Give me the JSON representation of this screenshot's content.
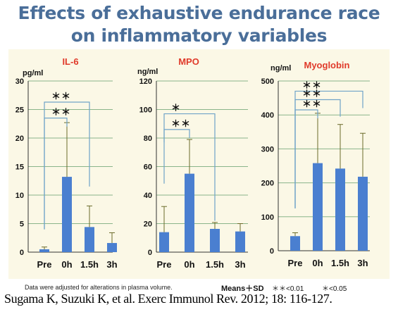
{
  "title_line_1": "Effects of exhaustive endurance race",
  "title_line_2": "on inflammatory variables",
  "chart_data": [
    {
      "type": "bar",
      "title": "IL-6",
      "ylabel": "pg/ml",
      "categories": [
        "Pre",
        "0h",
        "1.5h",
        "3h"
      ],
      "values": [
        0.5,
        13.2,
        4.4,
        1.6
      ],
      "errors": [
        0.4,
        9.5,
        3.7,
        1.8
      ],
      "ylim": [
        0,
        30
      ],
      "yticks": [
        0,
        5,
        10,
        15,
        20,
        25,
        30
      ],
      "grid": true,
      "color": "#4a7fd0",
      "annotations": [
        {
          "from": 0,
          "to": 2,
          "label": "＊＊",
          "level": 26.3,
          "left_drop": 4.0,
          "right_drop": 11.5
        },
        {
          "from": 0,
          "to": 1,
          "label": "＊＊",
          "level": 23.5,
          "left_drop": 4.0,
          "right_drop": 22.0
        }
      ]
    },
    {
      "type": "bar",
      "title": "MPO",
      "ylabel": "ng/ml",
      "categories": [
        "Pre",
        "0h",
        "1.5h",
        "3h"
      ],
      "values": [
        14,
        55,
        16.3,
        14.5
      ],
      "errors": [
        18,
        24,
        4.5,
        5.5
      ],
      "ylim": [
        0,
        120
      ],
      "yticks": [
        0,
        20,
        40,
        60,
        80,
        100,
        120
      ],
      "grid": true,
      "color": "#4a7fd0",
      "annotations": [
        {
          "from": 0,
          "to": 2,
          "label": "＊",
          "level": 97,
          "left_drop": 48,
          "right_drop": 22
        },
        {
          "from": 0,
          "to": 1,
          "label": "＊＊",
          "level": 86,
          "left_drop": 77,
          "right_drop": 80
        }
      ]
    },
    {
      "type": "bar",
      "title": "Myoglobin",
      "ylabel": "ng/ml",
      "categories": [
        "Pre",
        "0h",
        "1.5h",
        "3h"
      ],
      "values": [
        43,
        258,
        242,
        218
      ],
      "errors": [
        10,
        147,
        130,
        128
      ],
      "ylim": [
        0,
        500
      ],
      "yticks": [
        0,
        100,
        200,
        300,
        400,
        500
      ],
      "grid": true,
      "color": "#4a7fd0",
      "annotations": [
        {
          "from": 0,
          "to": 3,
          "label": "＊＊",
          "level": 470,
          "left_drop": 125,
          "right_drop": 420
        },
        {
          "from": 0,
          "to": 2,
          "label": "＊＊",
          "level": 445,
          "left_drop": 125,
          "right_drop": 395
        },
        {
          "from": 0,
          "to": 1,
          "label": "＊＊",
          "level": 415,
          "left_drop": 125,
          "right_drop": 390
        }
      ]
    }
  ],
  "footer": {
    "note": "Data were adjusted for alterations in plasma volume.",
    "legend_means": "Means＋SD",
    "legend_p01": "＊＊<0.01",
    "legend_p05": "＊<0.05",
    "citation": "Sugama K, Suzuki K, et al. Exerc Immunol Rev. 2012; 18: 116-127."
  }
}
